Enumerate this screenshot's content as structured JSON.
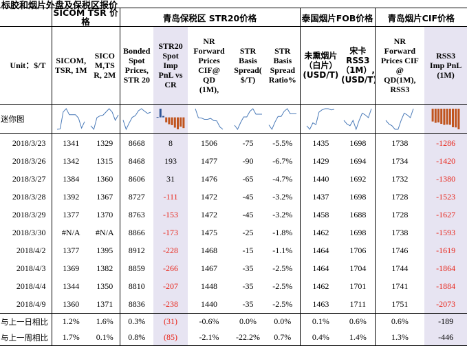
{
  "title": "标胶和烟片外盘及保税区报价",
  "groups": {
    "sicom": "SICOM TSR 价格",
    "qingdao_str20": "青岛保税区 STR20价格",
    "thai_fob": "泰国烟片FOB价格",
    "qingdao_cif": "青岛烟片CIF价格"
  },
  "columns": {
    "unit": "Unit：$/T",
    "c1": [
      "SICOM,",
      "TSR, 1M"
    ],
    "c2": [
      "SICO",
      "M,TS",
      "R, 2M"
    ],
    "c3": [
      "Bonded",
      "Spot",
      "Prices,",
      "STR 20"
    ],
    "c4": [
      "STR20",
      "Spot",
      "Imp",
      "PnL vs",
      "CR"
    ],
    "c5": [
      "NR",
      "Forward",
      "Prices",
      "CIF@",
      "QD",
      "(1M),"
    ],
    "c6": [
      "STR",
      "Basis",
      "Spread(",
      "$/T)"
    ],
    "c7": [
      "STR",
      "Basis",
      "Spread",
      "Ratio%"
    ],
    "c8": [
      "未熏烟片",
      "（白片）",
      "(USD/T)"
    ],
    "c9": [
      "宋卡",
      "RSS3",
      "（1M）,",
      "(USD/T)"
    ],
    "c10": [
      "NR",
      "Forward",
      "Prices CIF",
      "@",
      "QD(1M),",
      "RSS3"
    ],
    "c11": [
      "RSS3",
      "Imp PnL",
      "(1M)"
    ]
  },
  "sparkline_label": "迷你图",
  "rows": [
    {
      "date": "2018/3/23",
      "c1": "1341",
      "c2": "1329",
      "c3": "8668",
      "c4": "8",
      "c5": "1506",
      "c6": "-75",
      "c7": "-5.5%",
      "c8": "1435",
      "c9": "1698",
      "c10": "1738",
      "c11": "-1286"
    },
    {
      "date": "2018/3/26",
      "c1": "1342",
      "c2": "1315",
      "c3": "8468",
      "c4": "193",
      "c5": "1477",
      "c6": "-90",
      "c7": "-6.7%",
      "c8": "1429",
      "c9": "1694",
      "c10": "1734",
      "c11": "-1420"
    },
    {
      "date": "2018/3/27",
      "c1": "1384",
      "c2": "1360",
      "c3": "8606",
      "c4": "31",
      "c5": "1476",
      "c6": "-65",
      "c7": "-4.7%",
      "c8": "1440",
      "c9": "1692",
      "c10": "1732",
      "c11": "-1380"
    },
    {
      "date": "2018/3/28",
      "c1": "1392",
      "c2": "1367",
      "c3": "8727",
      "c4": "-111",
      "c5": "1472",
      "c6": "-45",
      "c7": "-3.2%",
      "c8": "1437",
      "c9": "1698",
      "c10": "1728",
      "c11": "-1523"
    },
    {
      "date": "2018/3/29",
      "c1": "1377",
      "c2": "1370",
      "c3": "8763",
      "c4": "-153",
      "c5": "1472",
      "c6": "-45",
      "c7": "-3.2%",
      "c8": "1458",
      "c9": "1688",
      "c10": "1728",
      "c11": "-1627"
    },
    {
      "date": "2018/3/30",
      "c1": "#N/A",
      "c2": "#N/A",
      "c3": "8866",
      "c4": "-173",
      "c5": "1475",
      "c6": "-25",
      "c7": "-1.8%",
      "c8": "1462",
      "c9": "1698",
      "c10": "1738",
      "c11": "-1593"
    },
    {
      "date": "2018/4/2",
      "c1": "1377",
      "c2": "1395",
      "c3": "8912",
      "c4": "-228",
      "c5": "1468",
      "c6": "-15",
      "c7": "-1.1%",
      "c8": "1464",
      "c9": "1706",
      "c10": "1746",
      "c11": "-1619"
    },
    {
      "date": "2018/4/3",
      "c1": "1369",
      "c2": "1382",
      "c3": "8859",
      "c4": "-266",
      "c5": "1467",
      "c6": "-35",
      "c7": "-2.5%",
      "c8": "1464",
      "c9": "1704",
      "c10": "1744",
      "c11": "-1864"
    },
    {
      "date": "2018/4/4",
      "c1": "1344",
      "c2": "1350",
      "c3": "8810",
      "c4": "-207",
      "c5": "1448",
      "c6": "-35",
      "c7": "-2.5%",
      "c8": "1462",
      "c9": "1701",
      "c10": "1741",
      "c11": "-1884"
    },
    {
      "date": "2018/4/9",
      "c1": "1360",
      "c2": "1371",
      "c3": "8836",
      "c4": "-238",
      "c5": "1440",
      "c6": "-35",
      "c7": "-2.5%",
      "c8": "1463",
      "c9": "1711",
      "c10": "1751",
      "c11": "-2073"
    }
  ],
  "summary": [
    {
      "label": "与上一日相比",
      "c1": "1.2%",
      "c2": "1.6%",
      "c3": "0.3%",
      "c4": "(31)",
      "c5": "-0.6%",
      "c6": "0.0%",
      "c7": "0.0%",
      "c8": "0.1%",
      "c9": "0.6%",
      "c10": "0.6%",
      "c11": "-189"
    },
    {
      "label": "与上一周相比",
      "c1": "1.7%",
      "c2": "0.1%",
      "c3": "0.8%",
      "c4": "(85)",
      "c5": "-2.1%",
      "c6": "-22.2%",
      "c7": "0.7%",
      "c8": "0.4%",
      "c9": "1.4%",
      "c10": "1.3%",
      "c11": "-446"
    }
  ],
  "colors": {
    "negative": "#e8251a",
    "highlight": "#e7e4f2",
    "spark_line": "#4a7ab8",
    "spark_bar_neg": "#c0541e",
    "spark_bar_pos": "#2f5597"
  }
}
